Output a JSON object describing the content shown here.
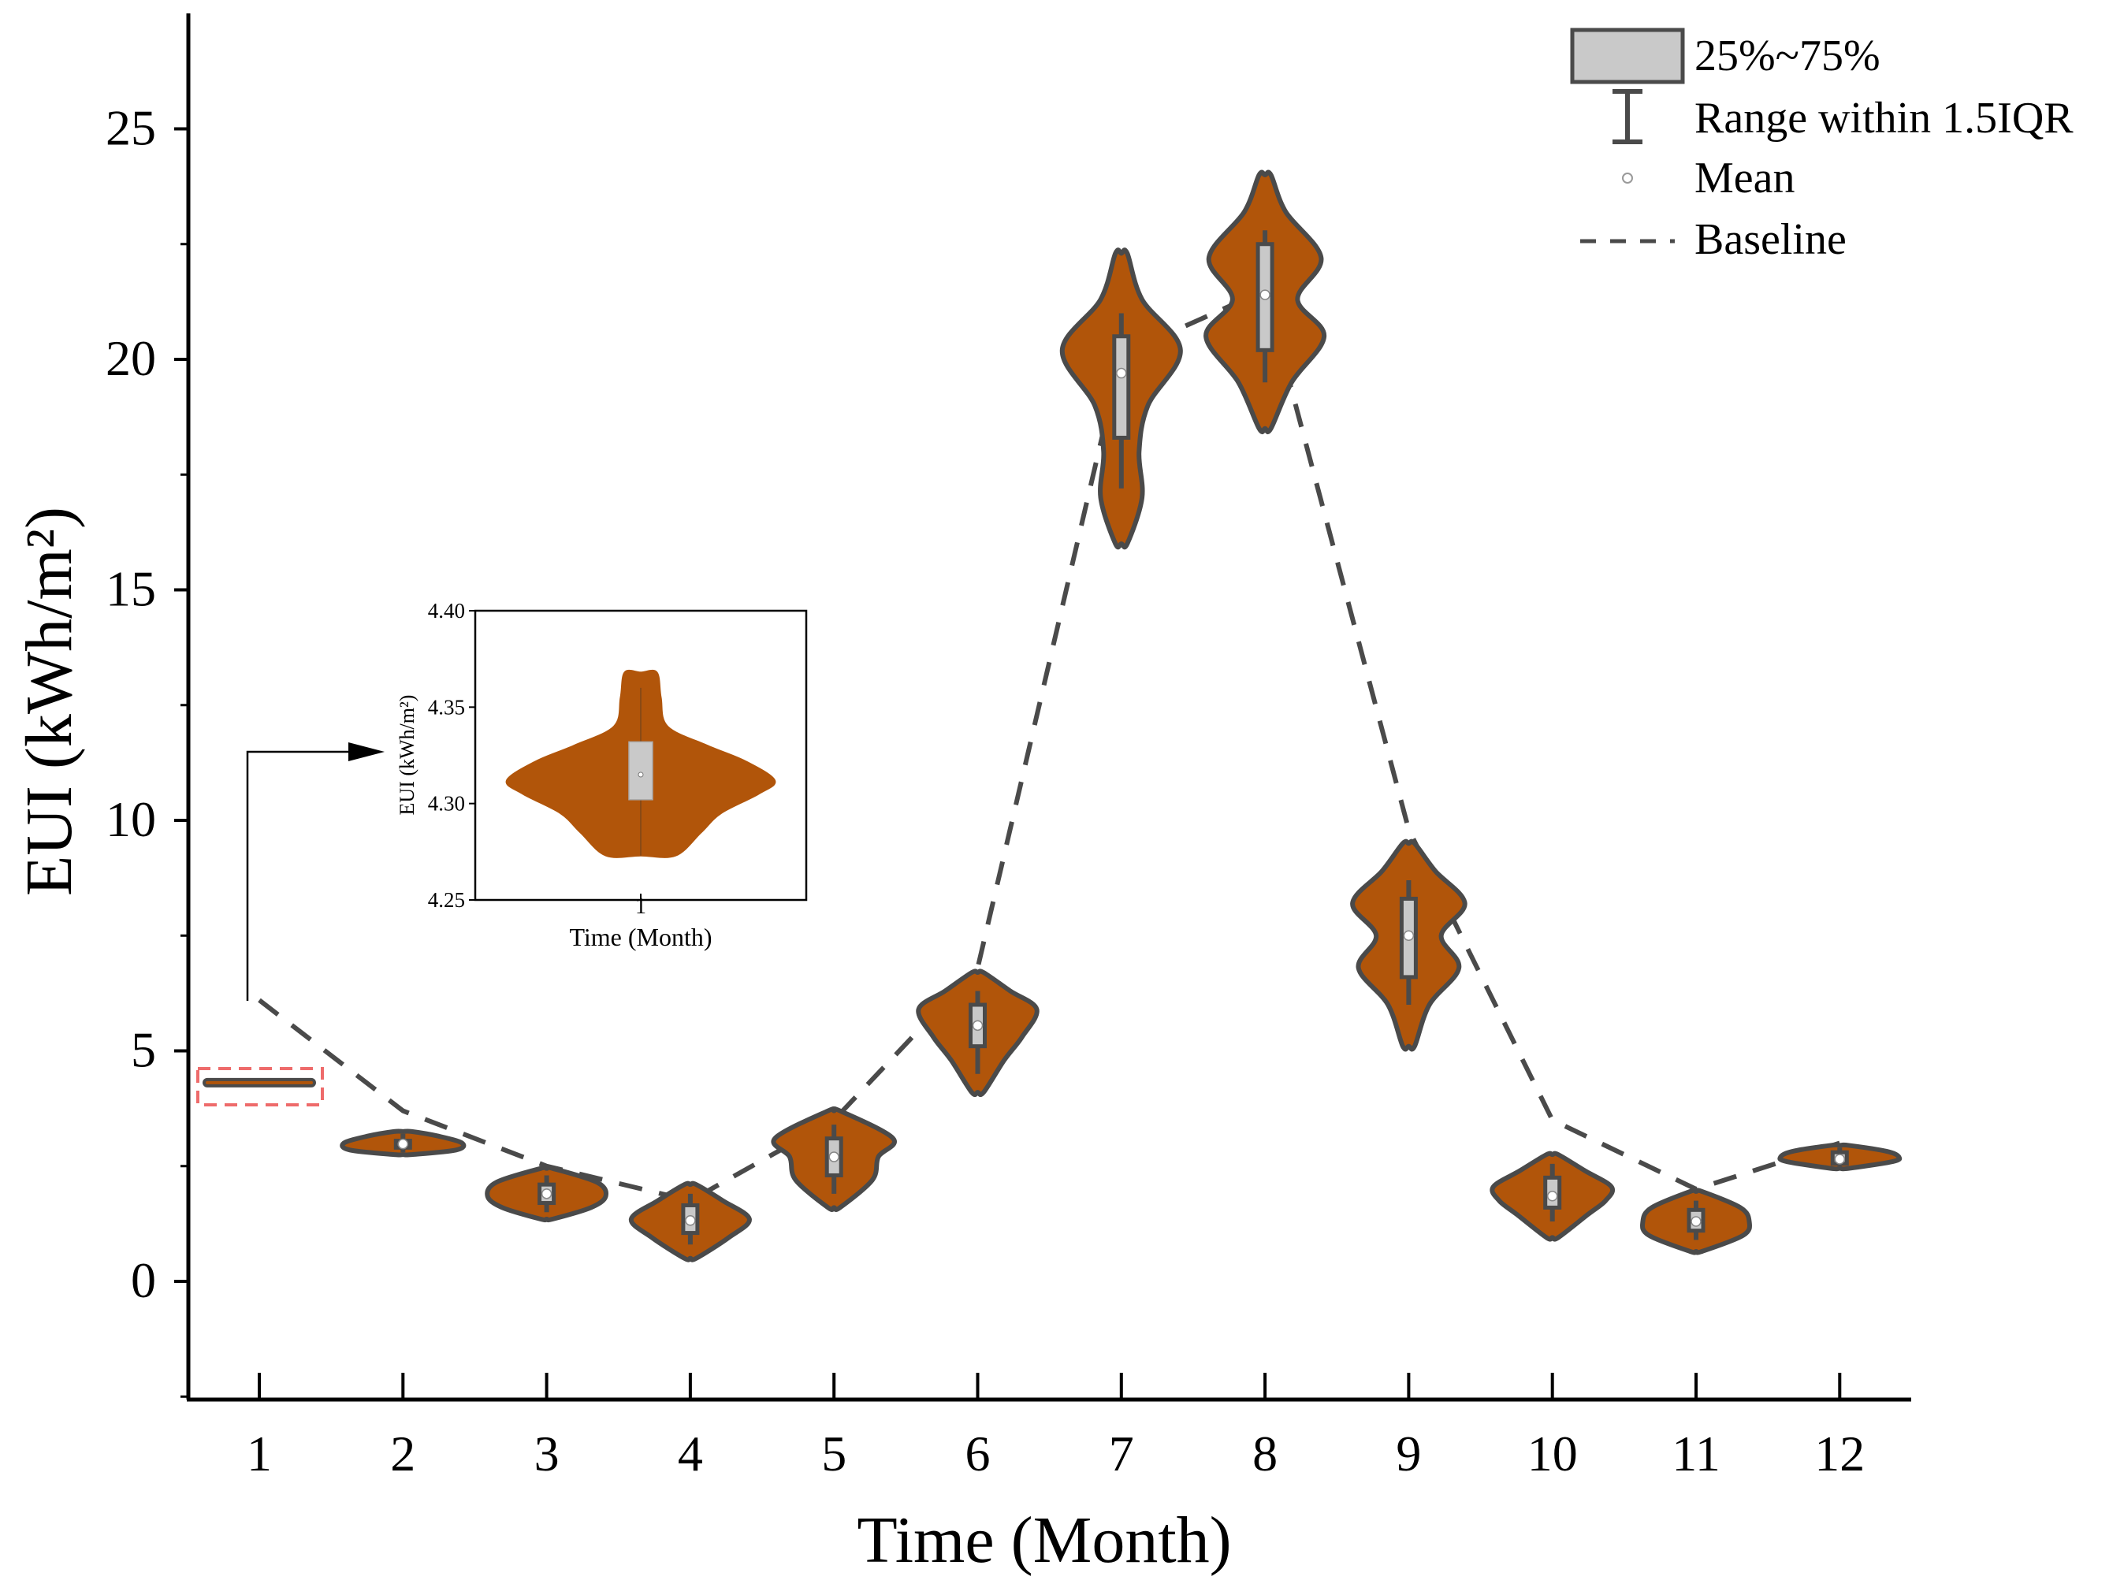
{
  "colors": {
    "violin_fill": "#b1550a",
    "outline": "#4a4a4a",
    "box_fill": "#c9c9c9",
    "baseline": "#4a4a4a",
    "highlight": "#ee6b6b",
    "axis": "#000000"
  },
  "chart_data": [
    {
      "type": "violin",
      "title": "",
      "xlabel": "Time (Month)",
      "ylabel": "EUI (kWh/m²)",
      "ylim": [
        -2.5,
        27.5
      ],
      "yticks": [
        0,
        5,
        10,
        15,
        20,
        25
      ],
      "ytick_labels": [
        "0",
        "5",
        "10",
        "15",
        "20",
        "25"
      ],
      "categories": [
        "1",
        "2",
        "3",
        "4",
        "5",
        "6",
        "7",
        "8",
        "9",
        "10",
        "11",
        "12"
      ],
      "series": [
        {
          "month": 1,
          "min": 4.27,
          "max": 4.37,
          "q1": 4.3,
          "q3": 4.33,
          "whisker_low": 4.28,
          "whisker_high": 4.36,
          "mean": 4.31,
          "widest": 4.31,
          "shape": [
            [
              4.27,
              0.1
            ],
            [
              4.31,
              1.0
            ],
            [
              4.37,
              0.1
            ]
          ]
        },
        {
          "month": 2,
          "min": 2.75,
          "max": 3.25,
          "q1": 2.9,
          "q3": 3.05,
          "whisker_low": 2.8,
          "whisker_high": 3.2,
          "mean": 2.98,
          "shape": [
            [
              2.75,
              0.15
            ],
            [
              2.85,
              0.9
            ],
            [
              3.0,
              1.0
            ],
            [
              3.15,
              0.6
            ],
            [
              3.25,
              0.15
            ]
          ]
        },
        {
          "month": 3,
          "min": 1.35,
          "max": 2.45,
          "q1": 1.7,
          "q3": 2.1,
          "whisker_low": 1.5,
          "whisker_high": 2.3,
          "mean": 1.9,
          "shape": [
            [
              1.35,
              0.1
            ],
            [
              1.6,
              0.75
            ],
            [
              1.85,
              1.0
            ],
            [
              2.15,
              0.85
            ],
            [
              2.45,
              0.1
            ]
          ]
        },
        {
          "month": 4,
          "min": 0.5,
          "max": 2.1,
          "q1": 1.05,
          "q3": 1.65,
          "whisker_low": 0.8,
          "whisker_high": 1.9,
          "mean": 1.32,
          "shape": [
            [
              0.5,
              0.1
            ],
            [
              0.95,
              0.65
            ],
            [
              1.35,
              1.0
            ],
            [
              1.75,
              0.55
            ],
            [
              2.1,
              0.1
            ]
          ]
        },
        {
          "month": 5,
          "min": 1.6,
          "max": 3.7,
          "q1": 2.3,
          "q3": 3.1,
          "whisker_low": 1.9,
          "whisker_high": 3.4,
          "mean": 2.7,
          "shape": [
            [
              1.6,
              0.1
            ],
            [
              2.2,
              0.65
            ],
            [
              2.7,
              0.75
            ],
            [
              3.1,
              1.0
            ],
            [
              3.7,
              0.1
            ]
          ]
        },
        {
          "month": 6,
          "min": 4.1,
          "max": 6.7,
          "q1": 5.1,
          "q3": 6.0,
          "whisker_low": 4.5,
          "whisker_high": 6.3,
          "mean": 5.55,
          "shape": [
            [
              4.1,
              0.1
            ],
            [
              4.8,
              0.45
            ],
            [
              5.3,
              0.75
            ],
            [
              5.9,
              1.0
            ],
            [
              6.3,
              0.55
            ],
            [
              6.7,
              0.1
            ]
          ]
        },
        {
          "month": 7,
          "min": 16.0,
          "max": 22.3,
          "q1": 18.3,
          "q3": 20.5,
          "whisker_low": 17.2,
          "whisker_high": 21.0,
          "mean": 19.7,
          "shape": [
            [
              16.0,
              0.1
            ],
            [
              17.0,
              0.35
            ],
            [
              18.0,
              0.3
            ],
            [
              19.0,
              0.45
            ],
            [
              20.2,
              1.0
            ],
            [
              21.3,
              0.35
            ],
            [
              22.3,
              0.1
            ]
          ]
        },
        {
          "month": 8,
          "min": 18.5,
          "max": 24.0,
          "q1": 20.2,
          "q3": 22.5,
          "whisker_low": 19.5,
          "whisker_high": 22.8,
          "mean": 21.4,
          "shape": [
            [
              18.5,
              0.1
            ],
            [
              19.5,
              0.45
            ],
            [
              20.5,
              1.0
            ],
            [
              21.3,
              0.55
            ],
            [
              22.2,
              0.95
            ],
            [
              23.2,
              0.35
            ],
            [
              24.0,
              0.1
            ]
          ]
        },
        {
          "month": 9,
          "min": 5.1,
          "max": 9.5,
          "q1": 6.6,
          "q3": 8.3,
          "whisker_low": 6.0,
          "whisker_high": 8.7,
          "mean": 7.5,
          "shape": [
            [
              5.1,
              0.1
            ],
            [
              6.0,
              0.35
            ],
            [
              6.8,
              0.85
            ],
            [
              7.5,
              0.55
            ],
            [
              8.2,
              0.95
            ],
            [
              8.9,
              0.45
            ],
            [
              9.5,
              0.1
            ]
          ]
        },
        {
          "month": 10,
          "min": 0.95,
          "max": 2.75,
          "q1": 1.6,
          "q3": 2.25,
          "whisker_low": 1.3,
          "whisker_high": 2.55,
          "mean": 1.85,
          "shape": [
            [
              0.95,
              0.1
            ],
            [
              1.45,
              0.6
            ],
            [
              1.75,
              0.9
            ],
            [
              2.05,
              1.0
            ],
            [
              2.4,
              0.55
            ],
            [
              2.75,
              0.1
            ]
          ]
        },
        {
          "month": 11,
          "min": 0.65,
          "max": 1.95,
          "q1": 1.1,
          "q3": 1.55,
          "whisker_low": 0.9,
          "whisker_high": 1.75,
          "mean": 1.3,
          "shape": [
            [
              0.65,
              0.1
            ],
            [
              1.0,
              0.8
            ],
            [
              1.3,
              0.9
            ],
            [
              1.6,
              0.75
            ],
            [
              1.95,
              0.1
            ]
          ]
        },
        {
          "month": 12,
          "min": 2.45,
          "max": 2.95,
          "q1": 2.55,
          "q3": 2.8,
          "whisker_low": 2.5,
          "whisker_high": 2.9,
          "mean": 2.65,
          "shape": [
            [
              2.45,
              0.15
            ],
            [
              2.6,
              0.9
            ],
            [
              2.7,
              1.0
            ],
            [
              2.82,
              0.8
            ],
            [
              2.95,
              0.15
            ]
          ]
        }
      ],
      "baseline": {
        "name": "Baseline",
        "values": [
          6.1,
          3.7,
          2.5,
          1.75,
          3.5,
          6.8,
          20.1,
          21.5,
          9.8,
          3.5,
          2.0,
          3.0
        ]
      },
      "legend": {
        "position": "top-right",
        "items": [
          "25%~75%",
          "Range within 1.5IQR",
          "Mean",
          "Baseline"
        ]
      }
    },
    {
      "type": "violin",
      "role": "inset",
      "xlabel": "Time (Month)",
      "ylabel": "EUI (kWh/m²)",
      "ylim": [
        4.25,
        4.4
      ],
      "yticks": [
        4.25,
        4.3,
        4.35,
        4.4
      ],
      "ytick_labels": [
        "4.25",
        "4.30",
        "4.35",
        "4.40"
      ],
      "categories": [
        "1"
      ],
      "series": [
        {
          "month": 1,
          "q1": 4.302,
          "q3": 4.332,
          "whisker_low": 4.273,
          "whisker_high": 4.36,
          "mean": 4.315,
          "shape": [
            [
              4.273,
              0.26
            ],
            [
              4.285,
              0.45
            ],
            [
              4.295,
              0.6
            ],
            [
              4.305,
              0.88
            ],
            [
              4.312,
              1.0
            ],
            [
              4.322,
              0.78
            ],
            [
              4.33,
              0.5
            ],
            [
              4.34,
              0.2
            ],
            [
              4.355,
              0.15
            ],
            [
              4.368,
              0.12
            ]
          ]
        }
      ]
    }
  ]
}
